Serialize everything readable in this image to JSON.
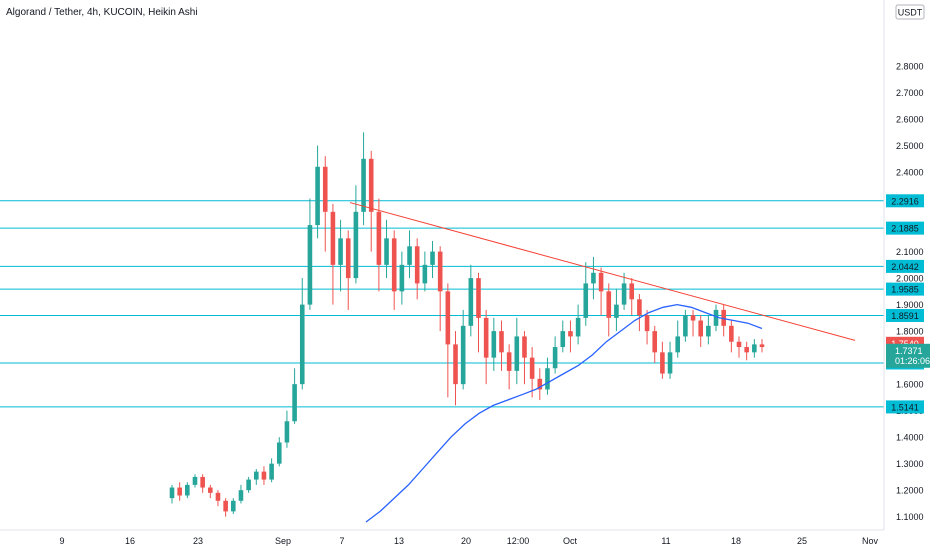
{
  "header": {
    "title": "Algorand / Tether, 4h, KUCOIN, Heikin Ashi",
    "currency": "USDT"
  },
  "colors": {
    "up": "#26a69a",
    "down": "#ef5350",
    "level": "#00bcd4",
    "ma": "#2962ff",
    "trend": "#f44336",
    "label_text": "#131722",
    "axis_text": "#131722"
  },
  "chart_data": {
    "type": "candlestick",
    "title": "Algorand / Tether, 4h, KUCOIN, Heikin Ashi",
    "ylim": [
      1.08,
      3.0
    ],
    "y_ticks": [
      "2.8000",
      "2.7000",
      "2.6000",
      "2.5000",
      "2.4000",
      "2.3000",
      "2.2000",
      "2.1000",
      "2.0000",
      "1.9000",
      "1.8000",
      "1.7000",
      "1.6000",
      "1.5000",
      "1.4000",
      "1.3000",
      "1.2000",
      "1.1000"
    ],
    "x_ticks": [
      "9",
      "16",
      "23",
      "Sep",
      "7",
      "13",
      "20",
      "12:00",
      "Oct",
      "11",
      "18",
      "25",
      "Nov"
    ],
    "grid": false,
    "horizontal_levels": [
      2.2916,
      2.1885,
      2.0442,
      1.9585,
      1.8591,
      1.6799,
      1.5141
    ],
    "level_labels": [
      "2.2916",
      "2.1885",
      "2.0442",
      "1.9585",
      "1.8591",
      "1.6799",
      "1.5141"
    ],
    "last_price": {
      "value": 1.754,
      "label": "1.7540"
    },
    "current_price": {
      "value": 1.7371,
      "label": "1.7371",
      "countdown": "01:26:06"
    },
    "trendline": {
      "start": [
        2.285
      ],
      "end": [
        1.765
      ]
    },
    "moving_average": [
      1.08,
      1.12,
      1.17,
      1.22,
      1.28,
      1.34,
      1.4,
      1.45,
      1.49,
      1.52,
      1.54,
      1.56,
      1.58,
      1.61,
      1.64,
      1.67,
      1.71,
      1.76,
      1.8,
      1.84,
      1.87,
      1.89,
      1.9,
      1.89,
      1.87,
      1.85,
      1.84,
      1.83,
      1.81
    ],
    "candles": [
      [
        1.17,
        1.21,
        1.15,
        1.22
      ],
      [
        1.21,
        1.18,
        1.16,
        1.23
      ],
      [
        1.18,
        1.22,
        1.17,
        1.23
      ],
      [
        1.22,
        1.25,
        1.21,
        1.26
      ],
      [
        1.25,
        1.21,
        1.19,
        1.26
      ],
      [
        1.21,
        1.19,
        1.17,
        1.22
      ],
      [
        1.19,
        1.16,
        1.14,
        1.2
      ],
      [
        1.16,
        1.12,
        1.1,
        1.17
      ],
      [
        1.12,
        1.16,
        1.11,
        1.17
      ],
      [
        1.16,
        1.2,
        1.15,
        1.22
      ],
      [
        1.2,
        1.24,
        1.19,
        1.25
      ],
      [
        1.24,
        1.27,
        1.22,
        1.28
      ],
      [
        1.27,
        1.24,
        1.22,
        1.29
      ],
      [
        1.24,
        1.3,
        1.23,
        1.32
      ],
      [
        1.3,
        1.38,
        1.29,
        1.4
      ],
      [
        1.38,
        1.46,
        1.36,
        1.5
      ],
      [
        1.46,
        1.6,
        1.45,
        1.66
      ],
      [
        1.6,
        1.9,
        1.58,
        2.0
      ],
      [
        1.9,
        2.2,
        1.88,
        2.3
      ],
      [
        2.2,
        2.42,
        2.15,
        2.5
      ],
      [
        2.42,
        2.25,
        2.1,
        2.46
      ],
      [
        2.25,
        2.05,
        1.9,
        2.28
      ],
      [
        2.05,
        2.15,
        1.95,
        2.22
      ],
      [
        2.15,
        2.0,
        1.88,
        2.18
      ],
      [
        2.0,
        2.25,
        1.98,
        2.35
      ],
      [
        2.25,
        2.45,
        2.2,
        2.55
      ],
      [
        2.45,
        2.25,
        2.1,
        2.48
      ],
      [
        2.25,
        2.05,
        1.95,
        2.3
      ],
      [
        2.05,
        2.15,
        2.0,
        2.22
      ],
      [
        2.15,
        1.95,
        1.88,
        2.18
      ],
      [
        1.95,
        2.05,
        1.9,
        2.1
      ],
      [
        2.05,
        2.12,
        2.0,
        2.18
      ],
      [
        2.12,
        1.98,
        1.92,
        2.15
      ],
      [
        1.98,
        2.05,
        1.95,
        2.1
      ],
      [
        2.05,
        2.1,
        2.0,
        2.14
      ],
      [
        2.1,
        1.95,
        1.8,
        2.12
      ],
      [
        1.95,
        1.75,
        1.55,
        1.98
      ],
      [
        1.75,
        1.6,
        1.52,
        1.8
      ],
      [
        1.6,
        1.82,
        1.58,
        1.88
      ],
      [
        1.82,
        2.0,
        1.78,
        2.05
      ],
      [
        2.0,
        1.85,
        1.72,
        2.02
      ],
      [
        1.85,
        1.7,
        1.6,
        1.88
      ],
      [
        1.7,
        1.8,
        1.65,
        1.85
      ],
      [
        1.8,
        1.72,
        1.65,
        1.84
      ],
      [
        1.72,
        1.65,
        1.58,
        1.75
      ],
      [
        1.65,
        1.78,
        1.6,
        1.85
      ],
      [
        1.78,
        1.7,
        1.6,
        1.8
      ],
      [
        1.7,
        1.62,
        1.55,
        1.74
      ],
      [
        1.62,
        1.58,
        1.54,
        1.66
      ],
      [
        1.58,
        1.66,
        1.56,
        1.7
      ],
      [
        1.66,
        1.74,
        1.64,
        1.78
      ],
      [
        1.74,
        1.8,
        1.72,
        1.84
      ],
      [
        1.8,
        1.78,
        1.72,
        1.84
      ],
      [
        1.78,
        1.85,
        1.75,
        1.9
      ],
      [
        1.85,
        1.98,
        1.82,
        2.06
      ],
      [
        1.98,
        2.02,
        1.92,
        2.08
      ],
      [
        2.02,
        1.95,
        1.86,
        2.04
      ],
      [
        1.95,
        1.85,
        1.78,
        1.98
      ],
      [
        1.85,
        1.9,
        1.8,
        1.96
      ],
      [
        1.9,
        1.98,
        1.88,
        2.02
      ],
      [
        1.98,
        1.92,
        1.86,
        2.0
      ],
      [
        1.92,
        1.86,
        1.8,
        1.94
      ],
      [
        1.86,
        1.8,
        1.75,
        1.88
      ],
      [
        1.8,
        1.72,
        1.68,
        1.82
      ],
      [
        1.72,
        1.64,
        1.62,
        1.76
      ],
      [
        1.64,
        1.72,
        1.62,
        1.76
      ],
      [
        1.72,
        1.78,
        1.7,
        1.84
      ],
      [
        1.78,
        1.86,
        1.76,
        1.88
      ],
      [
        1.86,
        1.84,
        1.78,
        1.88
      ],
      [
        1.84,
        1.78,
        1.74,
        1.86
      ],
      [
        1.78,
        1.82,
        1.75,
        1.86
      ],
      [
        1.82,
        1.88,
        1.8,
        1.9
      ],
      [
        1.88,
        1.82,
        1.78,
        1.9
      ],
      [
        1.82,
        1.76,
        1.72,
        1.84
      ],
      [
        1.76,
        1.74,
        1.7,
        1.78
      ],
      [
        1.74,
        1.72,
        1.69,
        1.76
      ],
      [
        1.72,
        1.75,
        1.7,
        1.77
      ],
      [
        1.75,
        1.74,
        1.72,
        1.77
      ]
    ]
  }
}
